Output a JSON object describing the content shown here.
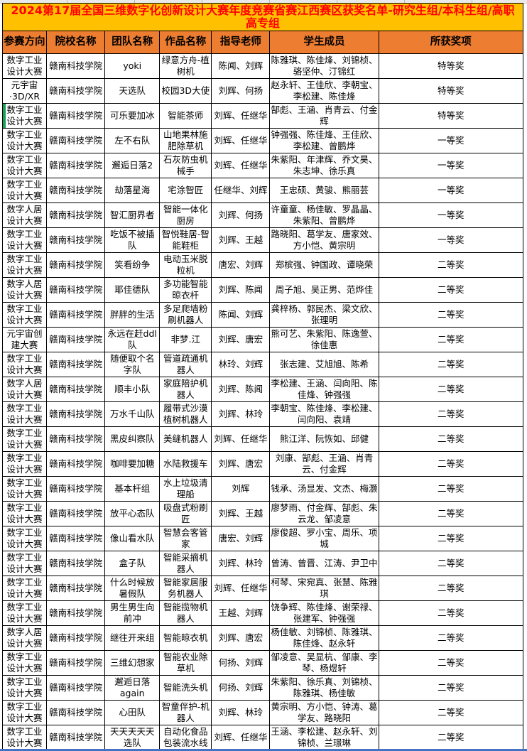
{
  "title": "2024第17届全国三维数字化创新设计大赛年度竞赛省赛江西赛区获奖名单-研究生组/本科生组/高职高专组",
  "colors": {
    "title_bg": "#FFC000",
    "title_text": "#FF0000",
    "header_bg": "#ED7D31",
    "border": "#000000",
    "row_marker_green": "#18A05A",
    "bottom_edge_blue": "#4472C4"
  },
  "columns": [
    "参赛方向",
    "院校名称",
    "团队名称",
    "作品名称",
    "指导老师",
    "学生成员",
    "所获奖项"
  ],
  "rows": [
    {
      "direction": "数字工业设计大赛",
      "school": "赣南科技学院",
      "team": "yoki",
      "work": "绿意方舟-植树机",
      "teachers": "陈闻、刘辉",
      "students": "陈雅琪、陈佳烽、刘锦桢、骆坚仲、汀锦红",
      "award": "特等奖"
    },
    {
      "direction": "元宇宙\n·3D/XR",
      "school": "赣南科技学院",
      "team": "天选队",
      "work": "校园3D大使",
      "teachers": "刘辉、何扬",
      "students": "赵永轩、王佳欣、李朝宝、李松建、陈佳烽",
      "award": "特等奖"
    },
    {
      "direction": "数字工业设计大赛",
      "school": "赣南科技学院",
      "team": "可乐要加冰",
      "work": "智能茶师",
      "teachers": "刘辉、任继华",
      "students": "郜彪、王涵、肖青云、付金辉",
      "award": "特等奖",
      "left_marker": true
    },
    {
      "direction": "数字工业设计大赛",
      "school": "赣南科技学院",
      "team": "左不右队",
      "work": "山地果林施肥除草机",
      "teachers": "刘辉、任继华",
      "students": "钟强强、陈佳烽、王佳欣、李松建、曾鹏烨",
      "award": "一等奖"
    },
    {
      "direction": "数字工业设计大赛",
      "school": "赣南科技学院",
      "team": "邂逅日落2",
      "work": "石灰防虫机械手",
      "teachers": "刘辉、任继华",
      "students": "朱紫阳、年津辉、乔文昊、朱志坤、徐乐真",
      "award": "一等奖"
    },
    {
      "direction": "数字工业设计大赛",
      "school": "赣南科技学院",
      "team": "劫落星海",
      "work": "宅涂智匠",
      "teachers": "任继华、刘辉",
      "students": "王忠硕、黄骏、熊丽芸",
      "award": "一等奖"
    },
    {
      "direction": "数字人居设计大赛",
      "school": "赣南科技学院",
      "team": "智汇厨界者",
      "work": "智能一体化厨房",
      "teachers": "刘辉、何扬",
      "students": "许童童、杨佳敏、罗晶晶、朱紫阳、曾鹏烨",
      "award": "一等奖"
    },
    {
      "direction": "数字工业设计大赛",
      "school": "赣南科技学院",
      "team": "吃饭不被插队",
      "work": "智悦鞋居-智能鞋柜",
      "teachers": "刘辉、王越",
      "students": "路晓阳、葛学友、唐家效、方小恺、黄宗明",
      "award": "一等奖"
    },
    {
      "direction": "数字工业设计大赛",
      "school": "赣南科技学院",
      "team": "笑看纷争",
      "work": "电动玉米脱粒机",
      "teachers": "唐宏、刘辉",
      "students": "郑槟强、钟国政、谭晓荣",
      "award": "二等奖"
    },
    {
      "direction": "数字人居设计大赛",
      "school": "赣南科技学院",
      "team": "耶佳德队",
      "work": "多功能智能晾衣杆",
      "teachers": "刘辉、陈闻",
      "students": "周子旭、吴正男、范烨佳",
      "award": "二等奖"
    },
    {
      "direction": "数字工业设计大赛",
      "school": "赣南科技学院",
      "team": "胖胖的生活",
      "work": "多足爬墙粉刷机器人",
      "teachers": "陈闻、刘辉",
      "students": "龚梓杨、郭民杰、梁文欣、张理明",
      "award": "二等奖"
    },
    {
      "direction": "元宇宙创建大赛",
      "school": "赣南科技学院",
      "team": "永远在赶ddl队",
      "work": "非梦.江",
      "teachers": "刘辉、唐宏",
      "students": "熊可艺、朱紫阳、陈逸萱、徐佳惠",
      "award": "二等奖"
    },
    {
      "direction": "数字工业设计大赛",
      "school": "赣南科技学院",
      "team": "随便取个名字队",
      "work": "管道疏通机器人",
      "teachers": "林玲、刘辉",
      "students": "张志建、艾旭旭、陈希",
      "award": "二等奖"
    },
    {
      "direction": "数字人居设计大赛",
      "school": "赣南科技学院",
      "team": "顺丰小队",
      "work": "家庭陪护机器人",
      "teachers": "刘辉、陈闻",
      "students": "李松建、王涵、闫向阳、陈佳烽、钟强强",
      "award": "二等奖"
    },
    {
      "direction": "数字工业设计大赛",
      "school": "赣南科技学院",
      "team": "万水千山队",
      "work": "履带式沙漠植树机器人",
      "teachers": "刘辉、林玲",
      "students": "李朝宝、陈佳烽、李松建、闫向阳、袁靖",
      "award": "二等奖"
    },
    {
      "direction": "数字工业设计大赛",
      "school": "赣南科技学院",
      "team": "黑皮纠察队",
      "work": "美缝机器人",
      "teachers": "刘辉、任继华",
      "students": "熊江洋、阮恢如、邱健",
      "award": "二等奖"
    },
    {
      "direction": "数字工业设计大赛",
      "school": "赣南科技学院",
      "team": "咖啡要加糖",
      "work": "水陆救援车",
      "teachers": "刘辉、唐宏",
      "students": "刘康、郜彪、王涵、肖青云、付金辉",
      "award": "二等奖"
    },
    {
      "direction": "数字工业设计大赛",
      "school": "赣南科技学院",
      "team": "基本杆组",
      "work": "水上垃圾清理船",
      "teachers": "刘辉",
      "students": "钱承、汤显发、文杰、梅灏",
      "award": "二等奖"
    },
    {
      "direction": "数字工业设计大赛",
      "school": "赣南科技学院",
      "team": "放平心态队",
      "work": "吸盘式粉刷匠",
      "teachers": "刘辉、王越",
      "students": "廖梦雨、付金辉、郜彪、朱云龙、邹凌意",
      "award": "二等奖"
    },
    {
      "direction": "数字工业设计大赛",
      "school": "赣南科技学院",
      "team": "像山看水队",
      "work": "智慧会客管家",
      "teachers": "唐宏、刘辉",
      "students": "廖俊超、罗小宝、周乐、项城",
      "award": "二等奖"
    },
    {
      "direction": "数字工业设计大赛",
      "school": "赣南科技学院",
      "team": "盒子队",
      "work": "智能采摘机器人",
      "teachers": "刘辉、林玲",
      "students": "曾涛、曾晋、江涛、尹卫中",
      "award": "二等奖"
    },
    {
      "direction": "数字工业设计大赛",
      "school": "赣南科技学院",
      "team": "什么时候放暑假队",
      "work": "智能家居服务机器人",
      "teachers": "刘辉、任继华",
      "students": "柯琴、宋宛真、张慧、陈雅琪",
      "award": "二等奖"
    },
    {
      "direction": "数字工业设计大赛",
      "school": "赣南科技学院",
      "team": "男生男生向前冲",
      "work": "智能揽物机器人",
      "teachers": "王越、刘辉",
      "students": "饶争辉、陈佳烽、谢荣禄、张建军、钟强强",
      "award": "二等奖"
    },
    {
      "direction": "数字人居设计大赛",
      "school": "赣南科技学院",
      "team": "继往开来组",
      "work": "智能晾衣机",
      "teachers": "刘辉、唐宏",
      "students": "杨佳敏、刘锦桢、陈雅琪、陈佳烽、赵永轩",
      "award": "二等奖"
    },
    {
      "direction": "数字工业设计大赛",
      "school": "赣南科技学院",
      "team": "三维幻想家",
      "work": "智能农业除草机",
      "teachers": "何扬、刘辉",
      "students": "邹凌意、吴显杭、邹康、李琴、杨煜轩",
      "award": "二等奖"
    },
    {
      "direction": "数字工业设计大赛",
      "school": "赣南科技学院",
      "team": "邂逅日落again",
      "work": "智能洗头机",
      "teachers": "何扬、刘辉",
      "students": "朱紫阳、徐乐真、刘锦桢、陈雅琪、杨佳敏",
      "award": "二等奖"
    },
    {
      "direction": "数字工业设计大赛",
      "school": "赣南科技学院",
      "team": "心田队",
      "work": "智童伴护-机器人",
      "teachers": "刘辉、林玲",
      "students": "黄宗明、方小恺、钟涛、葛学友、路晓阳",
      "award": "二等奖"
    },
    {
      "direction": "数字工业设计大赛",
      "school": "赣南科技学院",
      "team": "天天天天天选队",
      "work": "自动化食品包装流水线",
      "teachers": "刘辉、任继华",
      "students": "王涵、李松建、赵永轩、刘锦桢、兰璟琳",
      "award": "二等奖"
    }
  ]
}
